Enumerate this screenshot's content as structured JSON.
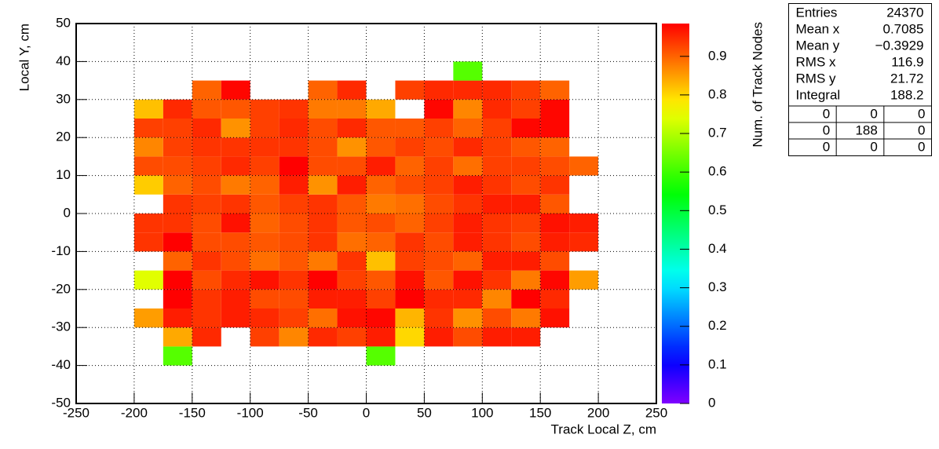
{
  "chart_data": {
    "type": "heatmap",
    "x_label": "Track Local Z, cm",
    "y_label": "Local Y, cm",
    "z_label": "Num. of Track Nodes",
    "x_edges": [
      -200,
      -175,
      -150,
      -125,
      -100,
      -75,
      -50,
      -25,
      0,
      25,
      50,
      75,
      100,
      125,
      150,
      175,
      200
    ],
    "y_edges": [
      -40,
      -35,
      -30,
      -25,
      -20,
      -15,
      -10,
      -5,
      0,
      5,
      10,
      15,
      20,
      25,
      30,
      35,
      40
    ],
    "z": [
      [
        null,
        0.62,
        null,
        null,
        null,
        null,
        null,
        null,
        0.62,
        null,
        null,
        null,
        null,
        null,
        null,
        null
      ],
      [
        null,
        0.84,
        0.95,
        null,
        0.93,
        0.87,
        0.95,
        0.93,
        0.96,
        0.8,
        0.96,
        0.92,
        0.96,
        0.96,
        null,
        null
      ],
      [
        0.85,
        0.96,
        0.94,
        0.96,
        0.95,
        0.93,
        0.89,
        0.97,
        0.98,
        0.83,
        0.94,
        0.86,
        0.92,
        0.88,
        0.97,
        null
      ],
      [
        null,
        0.99,
        0.94,
        0.96,
        0.92,
        0.92,
        0.96,
        0.96,
        0.93,
        0.99,
        0.95,
        0.95,
        0.87,
        0.99,
        0.95,
        null
      ],
      [
        0.74,
        0.99,
        0.92,
        0.95,
        0.97,
        0.94,
        0.99,
        0.93,
        0.91,
        0.97,
        0.91,
        0.97,
        0.94,
        0.88,
        0.98,
        0.85
      ],
      [
        null,
        0.9,
        0.94,
        0.92,
        0.89,
        0.91,
        0.88,
        0.94,
        0.82,
        0.93,
        0.92,
        0.9,
        0.96,
        0.96,
        0.92,
        null
      ],
      [
        0.94,
        0.99,
        0.92,
        0.92,
        0.91,
        0.92,
        0.94,
        0.89,
        0.9,
        0.94,
        0.92,
        0.96,
        0.94,
        0.92,
        0.96,
        0.95
      ],
      [
        0.94,
        0.94,
        0.92,
        0.97,
        0.9,
        0.92,
        0.94,
        0.91,
        0.92,
        0.9,
        0.93,
        0.96,
        0.94,
        0.93,
        0.97,
        0.96
      ],
      [
        null,
        0.94,
        0.93,
        0.94,
        0.91,
        0.93,
        0.94,
        0.91,
        0.88,
        0.89,
        0.92,
        0.94,
        0.96,
        0.96,
        0.91,
        null
      ],
      [
        0.81,
        0.9,
        0.92,
        0.88,
        0.9,
        0.96,
        0.86,
        0.96,
        0.9,
        0.92,
        0.93,
        0.96,
        0.94,
        0.92,
        0.94,
        null
      ],
      [
        0.92,
        0.92,
        0.93,
        0.95,
        0.93,
        0.99,
        0.92,
        0.92,
        0.96,
        0.9,
        0.93,
        0.89,
        0.93,
        0.93,
        0.92,
        0.9
      ],
      [
        0.87,
        0.93,
        0.94,
        0.94,
        0.94,
        0.94,
        0.92,
        0.86,
        0.91,
        0.93,
        0.92,
        0.95,
        0.93,
        0.91,
        0.9,
        null
      ],
      [
        0.93,
        0.93,
        0.95,
        0.86,
        0.93,
        0.95,
        0.92,
        0.95,
        0.91,
        0.91,
        0.93,
        0.9,
        0.93,
        0.98,
        0.98,
        null
      ],
      [
        0.82,
        0.95,
        0.91,
        0.91,
        0.93,
        0.94,
        0.88,
        0.88,
        0.84,
        null,
        0.98,
        0.87,
        0.95,
        0.93,
        0.98,
        null
      ],
      [
        null,
        null,
        0.9,
        0.98,
        null,
        null,
        0.9,
        0.95,
        null,
        0.93,
        0.95,
        0.95,
        0.95,
        0.93,
        0.9,
        null
      ],
      [
        null,
        null,
        null,
        null,
        null,
        null,
        null,
        null,
        null,
        null,
        null,
        0.62,
        null,
        null,
        null,
        null
      ]
    ],
    "xlim": [
      -250,
      250
    ],
    "ylim": [
      -50,
      50
    ],
    "zlim": [
      0,
      0.985
    ],
    "xticks": [
      -250,
      -200,
      -150,
      -100,
      -50,
      0,
      50,
      100,
      150,
      200,
      250
    ],
    "yticks": [
      -50,
      -40,
      -30,
      -20,
      -10,
      0,
      10,
      20,
      30,
      40,
      50
    ],
    "zticks": [
      0,
      0.1,
      0.2,
      0.3,
      0.4,
      0.5,
      0.6,
      0.7,
      0.8,
      0.9
    ],
    "grid": true,
    "palette": "rainbow"
  },
  "stats_box": {
    "rows": [
      {
        "name": "Entries",
        "value": 24370
      },
      {
        "name": "Mean x",
        "value": 0.7085
      },
      {
        "name": "Mean y",
        "value": {
          "value": -0.3929,
          "label": "−0.3929"
        }
      },
      {
        "name": "RMS x",
        "value": 116.9
      },
      {
        "name": "RMS y",
        "value": 21.72
      },
      {
        "name": "Integral",
        "value": 188.2
      }
    ],
    "table": [
      [
        0,
        0,
        0
      ],
      [
        0,
        188,
        0
      ],
      [
        0,
        0,
        0
      ]
    ]
  }
}
